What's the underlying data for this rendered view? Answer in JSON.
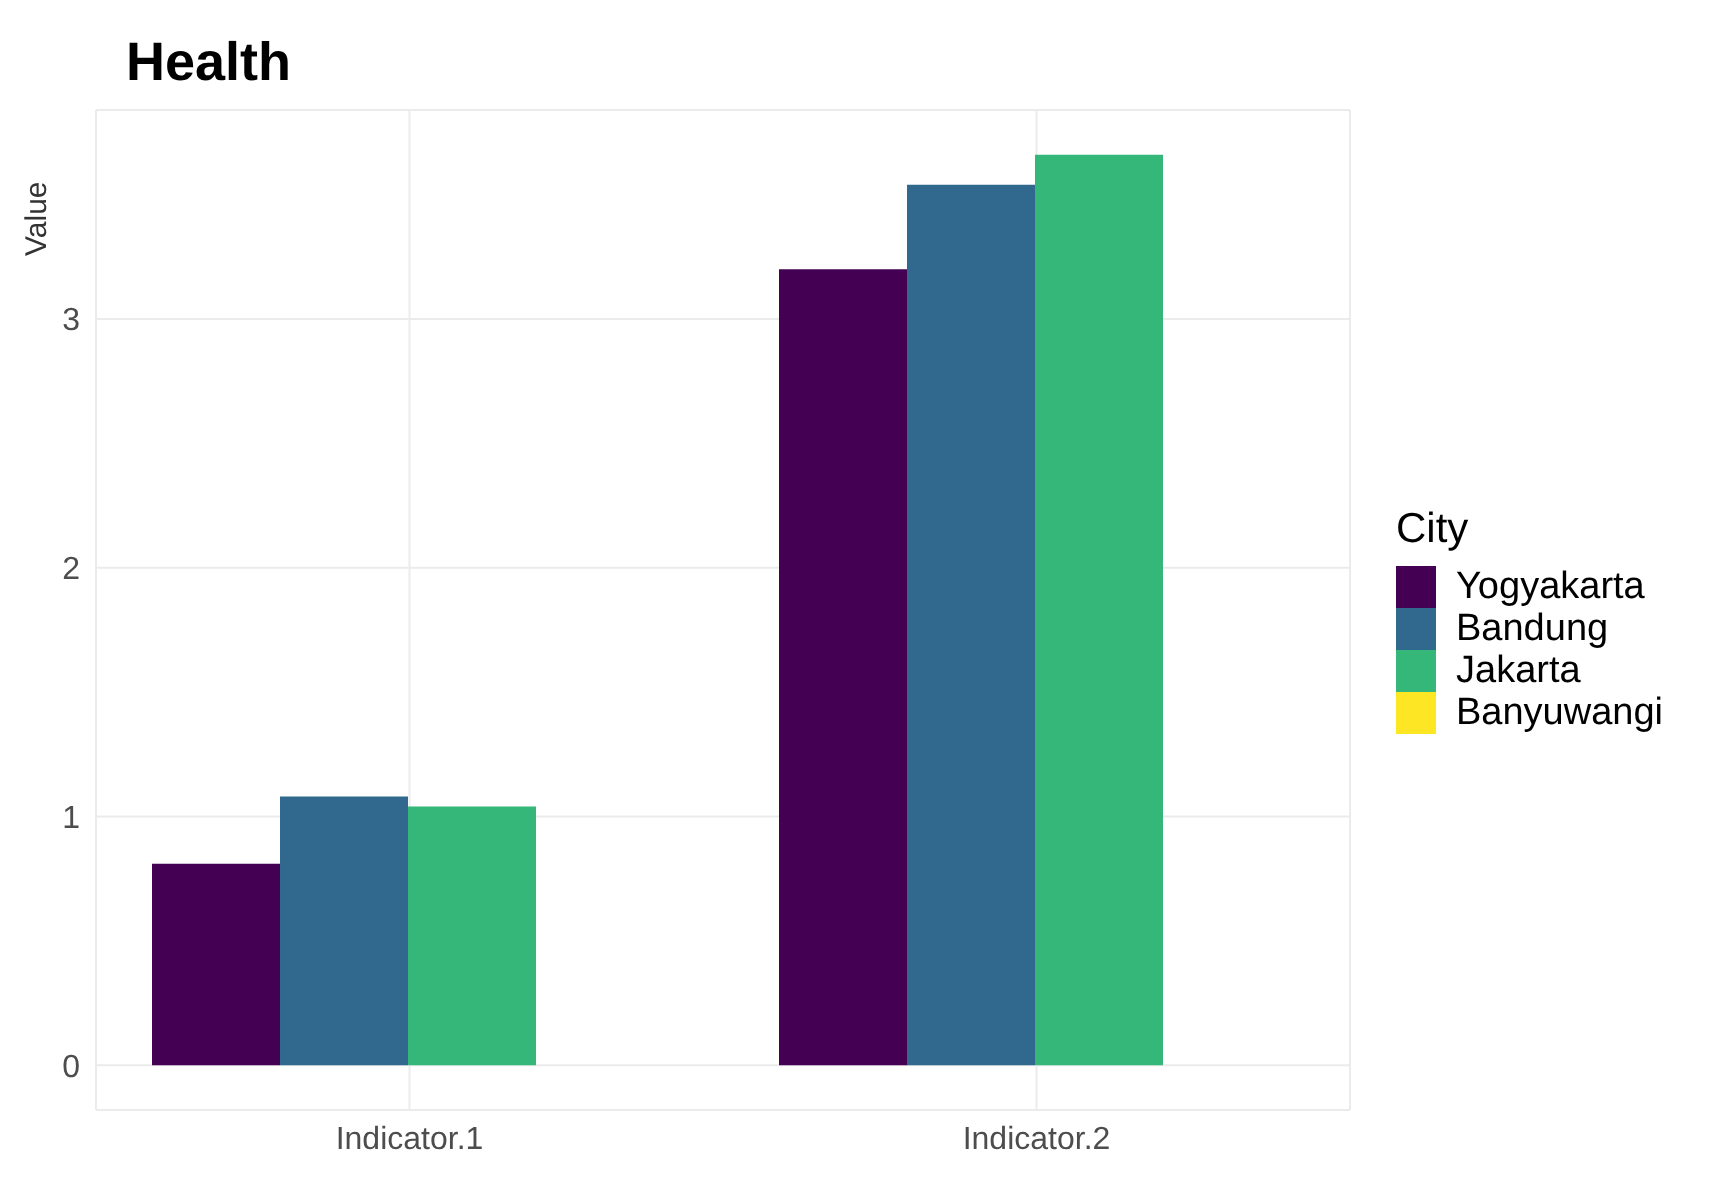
{
  "chart_data": {
    "type": "bar",
    "title": "Health",
    "ylabel": "Value",
    "legend_title": "City",
    "categories": [
      "Indicator.1",
      "Indicator.2"
    ],
    "series": [
      {
        "name": "Yogyakarta",
        "color": "#440154",
        "values": [
          0.81,
          3.2
        ]
      },
      {
        "name": "Bandung",
        "color": "#31688e",
        "values": [
          1.08,
          3.54
        ]
      },
      {
        "name": "Jakarta",
        "color": "#35b779",
        "values": [
          1.04,
          3.66
        ]
      },
      {
        "name": "Banyuwangi",
        "color": "#fde725",
        "values": [
          null,
          null
        ]
      }
    ],
    "ylim": [
      -0.18,
      3.84
    ],
    "yticks": [
      0,
      1,
      2,
      3
    ],
    "grid": true,
    "legend": "right"
  }
}
